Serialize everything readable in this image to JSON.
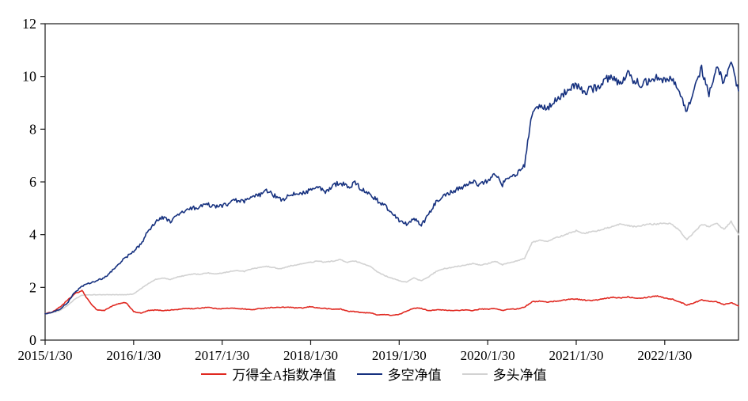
{
  "chart_data": {
    "type": "line",
    "title": "",
    "xlabel": "",
    "ylabel": "",
    "ylim": [
      0,
      12
    ],
    "yticks": [
      0,
      2,
      4,
      6,
      8,
      10,
      12
    ],
    "grid": "off",
    "legend_position": "bottom",
    "x_tick_labels": [
      "2015/1/30",
      "2016/1/30",
      "2017/1/30",
      "2018/1/30",
      "2019/1/30",
      "2020/1/30",
      "2021/1/30",
      "2022/1/30"
    ],
    "x_tick_month_index": [
      0,
      12,
      24,
      36,
      48,
      60,
      72,
      84
    ],
    "x_frequency": "monthly",
    "series": [
      {
        "name": "万得全A指数净值",
        "color": "#e02820",
        "values": [
          1.0,
          1.07,
          1.25,
          1.5,
          1.75,
          1.88,
          1.45,
          1.15,
          1.12,
          1.28,
          1.38,
          1.42,
          1.08,
          1.02,
          1.12,
          1.14,
          1.12,
          1.14,
          1.16,
          1.2,
          1.19,
          1.21,
          1.25,
          1.2,
          1.19,
          1.21,
          1.2,
          1.18,
          1.15,
          1.19,
          1.22,
          1.24,
          1.24,
          1.25,
          1.22,
          1.22,
          1.27,
          1.22,
          1.2,
          1.17,
          1.18,
          1.1,
          1.08,
          1.04,
          1.04,
          0.96,
          0.97,
          0.94,
          0.97,
          1.1,
          1.22,
          1.2,
          1.12,
          1.15,
          1.14,
          1.12,
          1.13,
          1.14,
          1.12,
          1.18,
          1.17,
          1.2,
          1.12,
          1.18,
          1.18,
          1.26,
          1.45,
          1.48,
          1.44,
          1.47,
          1.5,
          1.55,
          1.56,
          1.52,
          1.5,
          1.53,
          1.58,
          1.62,
          1.6,
          1.64,
          1.6,
          1.6,
          1.64,
          1.68,
          1.6,
          1.55,
          1.45,
          1.33,
          1.42,
          1.52,
          1.48,
          1.46,
          1.35,
          1.42,
          1.3
        ]
      },
      {
        "name": "多空净值",
        "color": "#16317f",
        "values": [
          1.0,
          1.05,
          1.18,
          1.4,
          1.8,
          2.05,
          2.15,
          2.25,
          2.35,
          2.6,
          2.9,
          3.15,
          3.35,
          3.65,
          4.15,
          4.5,
          4.65,
          4.5,
          4.75,
          4.9,
          5.0,
          5.05,
          5.15,
          5.05,
          5.1,
          5.2,
          5.3,
          5.25,
          5.4,
          5.5,
          5.65,
          5.5,
          5.3,
          5.45,
          5.55,
          5.6,
          5.7,
          5.8,
          5.6,
          5.85,
          6.0,
          5.8,
          5.95,
          5.7,
          5.55,
          5.3,
          5.1,
          4.85,
          4.55,
          4.4,
          4.6,
          4.35,
          4.75,
          5.25,
          5.5,
          5.6,
          5.75,
          5.85,
          6.0,
          5.9,
          6.05,
          6.3,
          5.9,
          6.25,
          6.3,
          6.6,
          8.6,
          8.9,
          8.75,
          9.0,
          9.3,
          9.5,
          9.7,
          9.4,
          9.5,
          9.6,
          9.9,
          10.0,
          9.7,
          10.1,
          9.8,
          9.7,
          9.9,
          10.0,
          9.85,
          9.95,
          9.4,
          8.6,
          9.6,
          10.3,
          9.3,
          10.4,
          9.8,
          10.5,
          9.45
        ]
      },
      {
        "name": "多头净值",
        "color": "#d2d2d2",
        "values": [
          1.0,
          1.04,
          1.12,
          1.3,
          1.55,
          1.7,
          1.72,
          1.72,
          1.72,
          1.72,
          1.72,
          1.72,
          1.75,
          1.95,
          2.15,
          2.3,
          2.35,
          2.3,
          2.4,
          2.45,
          2.5,
          2.5,
          2.55,
          2.5,
          2.55,
          2.6,
          2.65,
          2.6,
          2.7,
          2.75,
          2.8,
          2.75,
          2.7,
          2.8,
          2.85,
          2.9,
          2.95,
          3.0,
          2.95,
          3.0,
          3.05,
          2.95,
          3.0,
          2.9,
          2.8,
          2.6,
          2.45,
          2.35,
          2.25,
          2.2,
          2.35,
          2.25,
          2.4,
          2.6,
          2.7,
          2.75,
          2.8,
          2.85,
          2.9,
          2.85,
          2.9,
          3.0,
          2.85,
          2.95,
          3.0,
          3.1,
          3.7,
          3.8,
          3.75,
          3.85,
          3.95,
          4.05,
          4.15,
          4.05,
          4.1,
          4.15,
          4.25,
          4.3,
          4.4,
          4.35,
          4.3,
          4.35,
          4.4,
          4.4,
          4.45,
          4.4,
          4.15,
          3.8,
          4.1,
          4.4,
          4.3,
          4.45,
          4.2,
          4.5,
          4.0
        ]
      }
    ]
  },
  "legend": {
    "items": [
      {
        "label": "万得全A指数净值"
      },
      {
        "label": "多空净值"
      },
      {
        "label": "多头净值"
      }
    ]
  }
}
